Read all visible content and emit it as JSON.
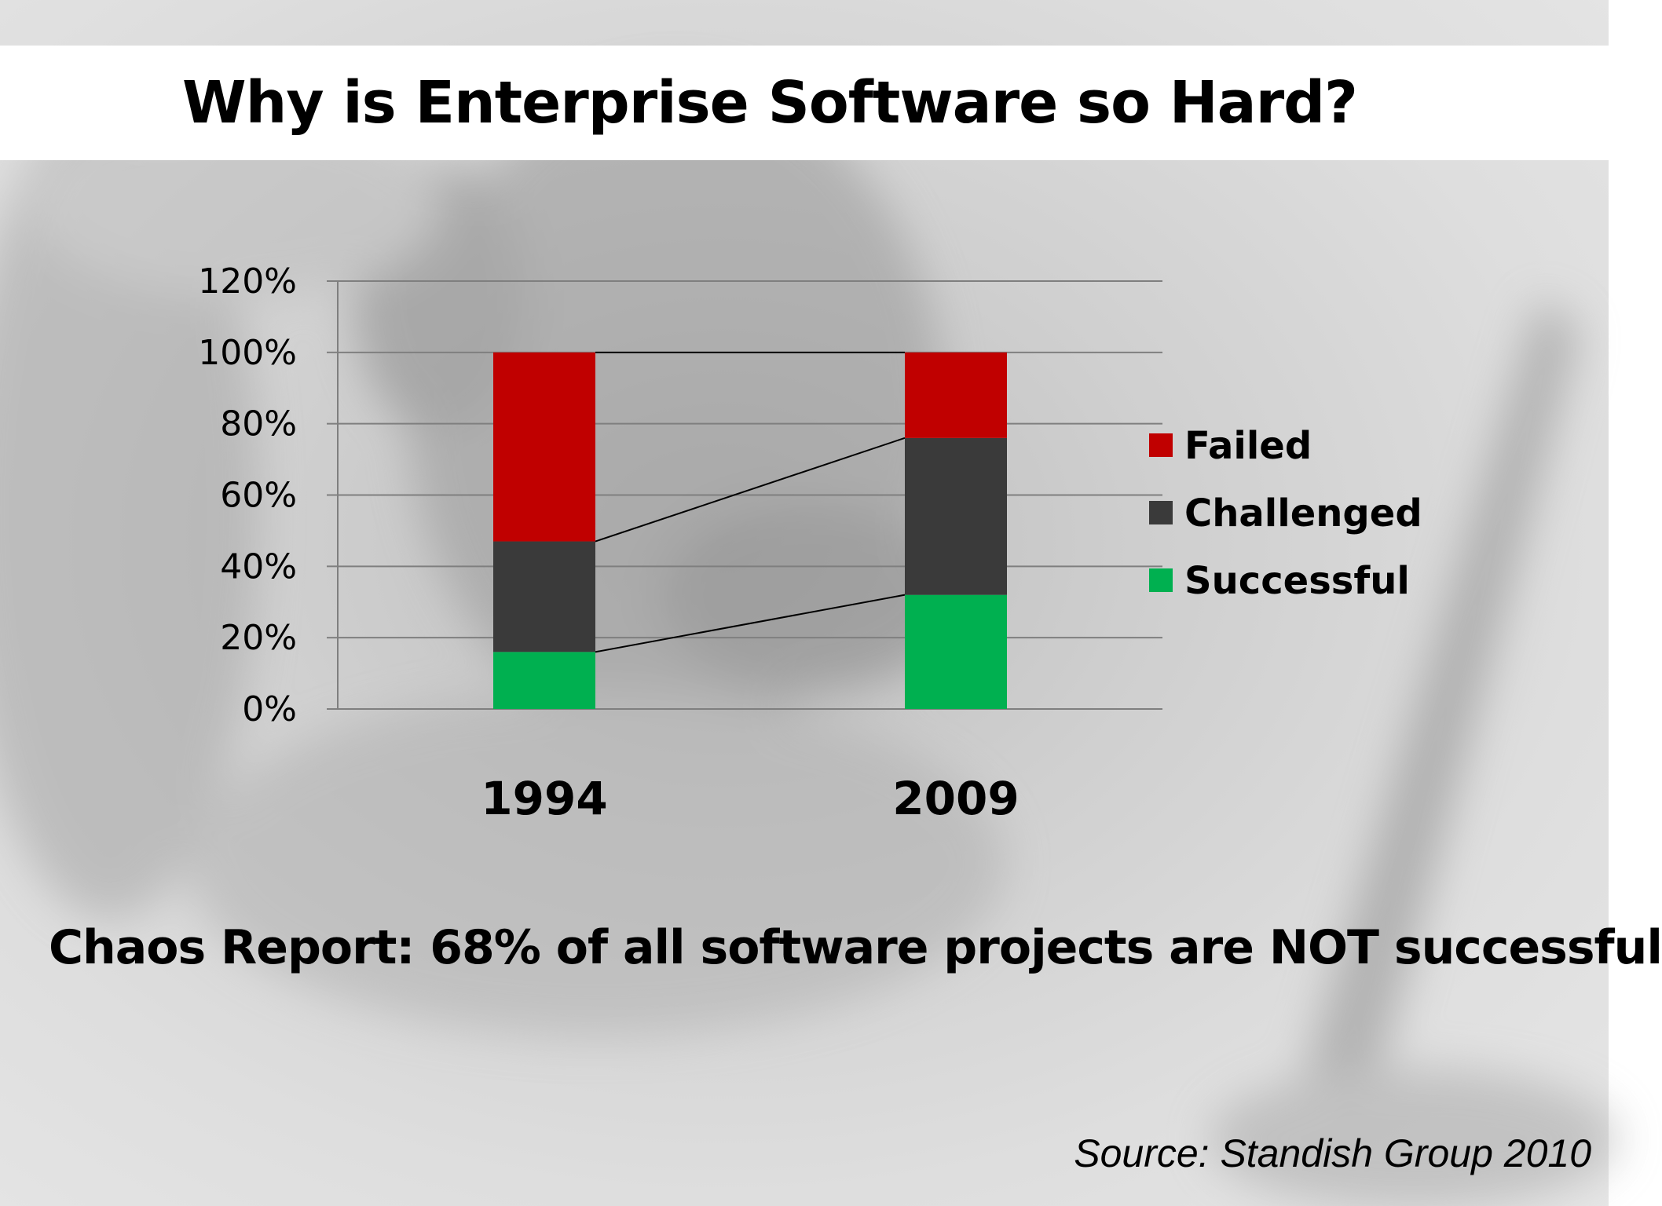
{
  "slide": {
    "title": "Why is Enterprise Software so Hard?",
    "caption": "Chaos Report:  68% of all software projects are NOT successful",
    "source": "Source: Standish Group 2010"
  },
  "chart_data": {
    "type": "bar",
    "stacked": true,
    "categories": [
      "1994",
      "2009"
    ],
    "series": [
      {
        "name": "Successful",
        "values": [
          16,
          32
        ],
        "color": "#00b050"
      },
      {
        "name": "Challenged",
        "values": [
          31,
          44
        ],
        "color": "#3a3a3a"
      },
      {
        "name": "Failed",
        "values": [
          53,
          24
        ],
        "color": "#c00000"
      }
    ],
    "series_lines": true,
    "title": "",
    "xlabel": "",
    "ylabel": "",
    "ylim": [
      0,
      120
    ],
    "y_ticks": [
      "0%",
      "20%",
      "40%",
      "60%",
      "80%",
      "100%",
      "120%"
    ],
    "grid": true,
    "legend_position": "right"
  }
}
